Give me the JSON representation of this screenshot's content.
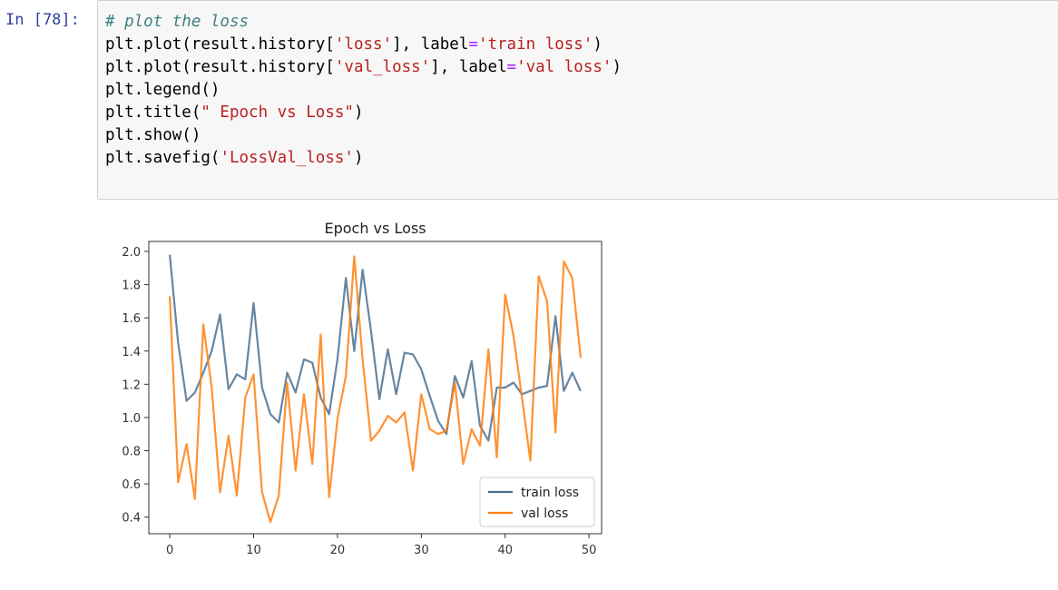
{
  "cell": {
    "prompt": "In [78]:",
    "code_lines": [
      [
        {
          "t": "# plot the loss",
          "c": "cm"
        }
      ],
      [
        {
          "t": "plt.plot(result.history[",
          "c": ""
        },
        {
          "t": "'loss'",
          "c": "st"
        },
        {
          "t": "], label",
          "c": ""
        },
        {
          "t": "=",
          "c": "op"
        },
        {
          "t": "'train loss'",
          "c": "st"
        },
        {
          "t": ")",
          "c": ""
        }
      ],
      [
        {
          "t": "plt.plot(result.history[",
          "c": ""
        },
        {
          "t": "'val_loss'",
          "c": "st"
        },
        {
          "t": "], label",
          "c": ""
        },
        {
          "t": "=",
          "c": "op"
        },
        {
          "t": "'val loss'",
          "c": "st"
        },
        {
          "t": ")",
          "c": ""
        }
      ],
      [
        {
          "t": "plt.legend()",
          "c": ""
        }
      ],
      [
        {
          "t": "plt.title(",
          "c": ""
        },
        {
          "t": "\" Epoch vs Loss\"",
          "c": "st"
        },
        {
          "t": ")",
          "c": ""
        }
      ],
      [
        {
          "t": "plt.show()",
          "c": ""
        }
      ],
      [
        {
          "t": "plt.savefig(",
          "c": ""
        },
        {
          "t": "'LossVal_loss'",
          "c": "st"
        },
        {
          "t": ")",
          "c": ""
        }
      ]
    ]
  },
  "chart_data": {
    "type": "line",
    "title": "Epoch vs Loss",
    "xlabel": "",
    "ylabel": "",
    "xlim": [
      -2.5,
      51.5
    ],
    "ylim": [
      0.3,
      2.06
    ],
    "xticks": [
      0,
      10,
      20,
      30,
      40,
      50
    ],
    "yticks": [
      0.4,
      0.6,
      0.8,
      1.0,
      1.2,
      1.4,
      1.6,
      1.8,
      2.0
    ],
    "ytick_labels": [
      "0.4",
      "0.6",
      "0.8",
      "1.0",
      "1.2",
      "1.4",
      "1.6",
      "1.8",
      "2.0"
    ],
    "grid": false,
    "legend_position": "lower-right",
    "x": [
      0,
      1,
      2,
      3,
      4,
      5,
      6,
      7,
      8,
      9,
      10,
      11,
      12,
      13,
      14,
      15,
      16,
      17,
      18,
      19,
      20,
      21,
      22,
      23,
      24,
      25,
      26,
      27,
      28,
      29,
      30,
      31,
      32,
      33,
      34,
      35,
      36,
      37,
      38,
      39,
      40,
      41,
      42,
      43,
      44,
      45,
      46,
      47,
      48,
      49
    ],
    "series": [
      {
        "name": "train loss",
        "color": "#4c7090",
        "values": [
          1.98,
          1.45,
          1.1,
          1.15,
          1.27,
          1.4,
          1.62,
          1.17,
          1.26,
          1.23,
          1.69,
          1.18,
          1.02,
          0.97,
          1.27,
          1.15,
          1.35,
          1.33,
          1.12,
          1.02,
          1.35,
          1.84,
          1.4,
          1.89,
          1.52,
          1.11,
          1.41,
          1.14,
          1.39,
          1.38,
          1.29,
          1.13,
          0.98,
          0.9,
          1.25,
          1.12,
          1.34,
          0.95,
          0.86,
          1.18,
          1.18,
          1.21,
          1.14,
          1.16,
          1.18,
          1.19,
          1.61,
          1.16,
          1.27,
          1.16
        ]
      },
      {
        "name": "val loss",
        "color": "#ff7f0e",
        "values": [
          1.73,
          0.61,
          0.84,
          0.51,
          1.56,
          1.18,
          0.55,
          0.89,
          0.53,
          1.12,
          1.26,
          0.55,
          0.37,
          0.53,
          1.21,
          0.68,
          1.14,
          0.72,
          1.5,
          0.52,
          0.99,
          1.25,
          1.97,
          1.35,
          0.86,
          0.92,
          1.01,
          0.97,
          1.03,
          0.68,
          1.14,
          0.93,
          0.9,
          0.92,
          1.21,
          0.72,
          0.93,
          0.83,
          1.41,
          0.76,
          1.74,
          1.49,
          1.12,
          0.74,
          1.85,
          1.7,
          0.91,
          1.94,
          1.84,
          1.36
        ]
      }
    ]
  }
}
